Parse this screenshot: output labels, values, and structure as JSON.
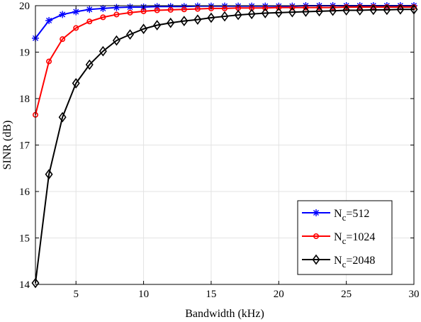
{
  "chart_data": {
    "type": "line",
    "title": "",
    "xlabel": "Bandwidth (kHz)",
    "ylabel": "SINR (dB)",
    "xlim": [
      2,
      30
    ],
    "ylim": [
      14,
      20
    ],
    "xticks": [
      5,
      10,
      15,
      20,
      25,
      30
    ],
    "yticks": [
      14,
      15,
      16,
      17,
      18,
      19,
      20
    ],
    "grid": true,
    "legend_position": "bottom-right",
    "x": [
      2,
      3,
      4,
      5,
      6,
      7,
      8,
      9,
      10,
      11,
      12,
      13,
      14,
      15,
      16,
      17,
      18,
      19,
      20,
      21,
      22,
      23,
      24,
      25,
      26,
      27,
      28,
      29,
      30
    ],
    "series": [
      {
        "name_prefix": "N",
        "name_sub": "c",
        "name_suffix": "=512",
        "color": "#0000ff",
        "marker": "asterisk",
        "values": [
          19.3,
          19.68,
          19.81,
          19.87,
          19.92,
          19.94,
          19.96,
          19.97,
          19.97,
          19.98,
          19.98,
          19.98,
          19.99,
          19.99,
          19.99,
          19.99,
          19.99,
          19.99,
          19.99,
          19.99,
          20.0,
          20.0,
          20.0,
          20.0,
          20.0,
          20.0,
          20.0,
          20.0,
          20.0
        ]
      },
      {
        "name_prefix": "N",
        "name_sub": "c",
        "name_suffix": "=1024",
        "color": "#ff0000",
        "marker": "circle",
        "values": [
          17.65,
          18.8,
          19.28,
          19.52,
          19.66,
          19.75,
          19.81,
          19.85,
          19.88,
          19.9,
          19.91,
          19.92,
          19.93,
          19.94,
          19.94,
          19.95,
          19.95,
          19.95,
          19.96,
          19.96,
          19.96,
          19.96,
          19.96,
          19.97,
          19.97,
          19.97,
          19.97,
          19.97,
          19.97
        ]
      },
      {
        "name_prefix": "N",
        "name_sub": "c",
        "name_suffix": "=2048",
        "color": "#000000",
        "marker": "diamond",
        "values": [
          14.03,
          16.37,
          17.6,
          18.33,
          18.73,
          19.02,
          19.25,
          19.38,
          19.5,
          19.58,
          19.63,
          19.67,
          19.7,
          19.74,
          19.77,
          19.8,
          19.82,
          19.84,
          19.85,
          19.86,
          19.87,
          19.88,
          19.89,
          19.9,
          19.9,
          19.91,
          19.91,
          19.92,
          19.92
        ]
      }
    ]
  }
}
